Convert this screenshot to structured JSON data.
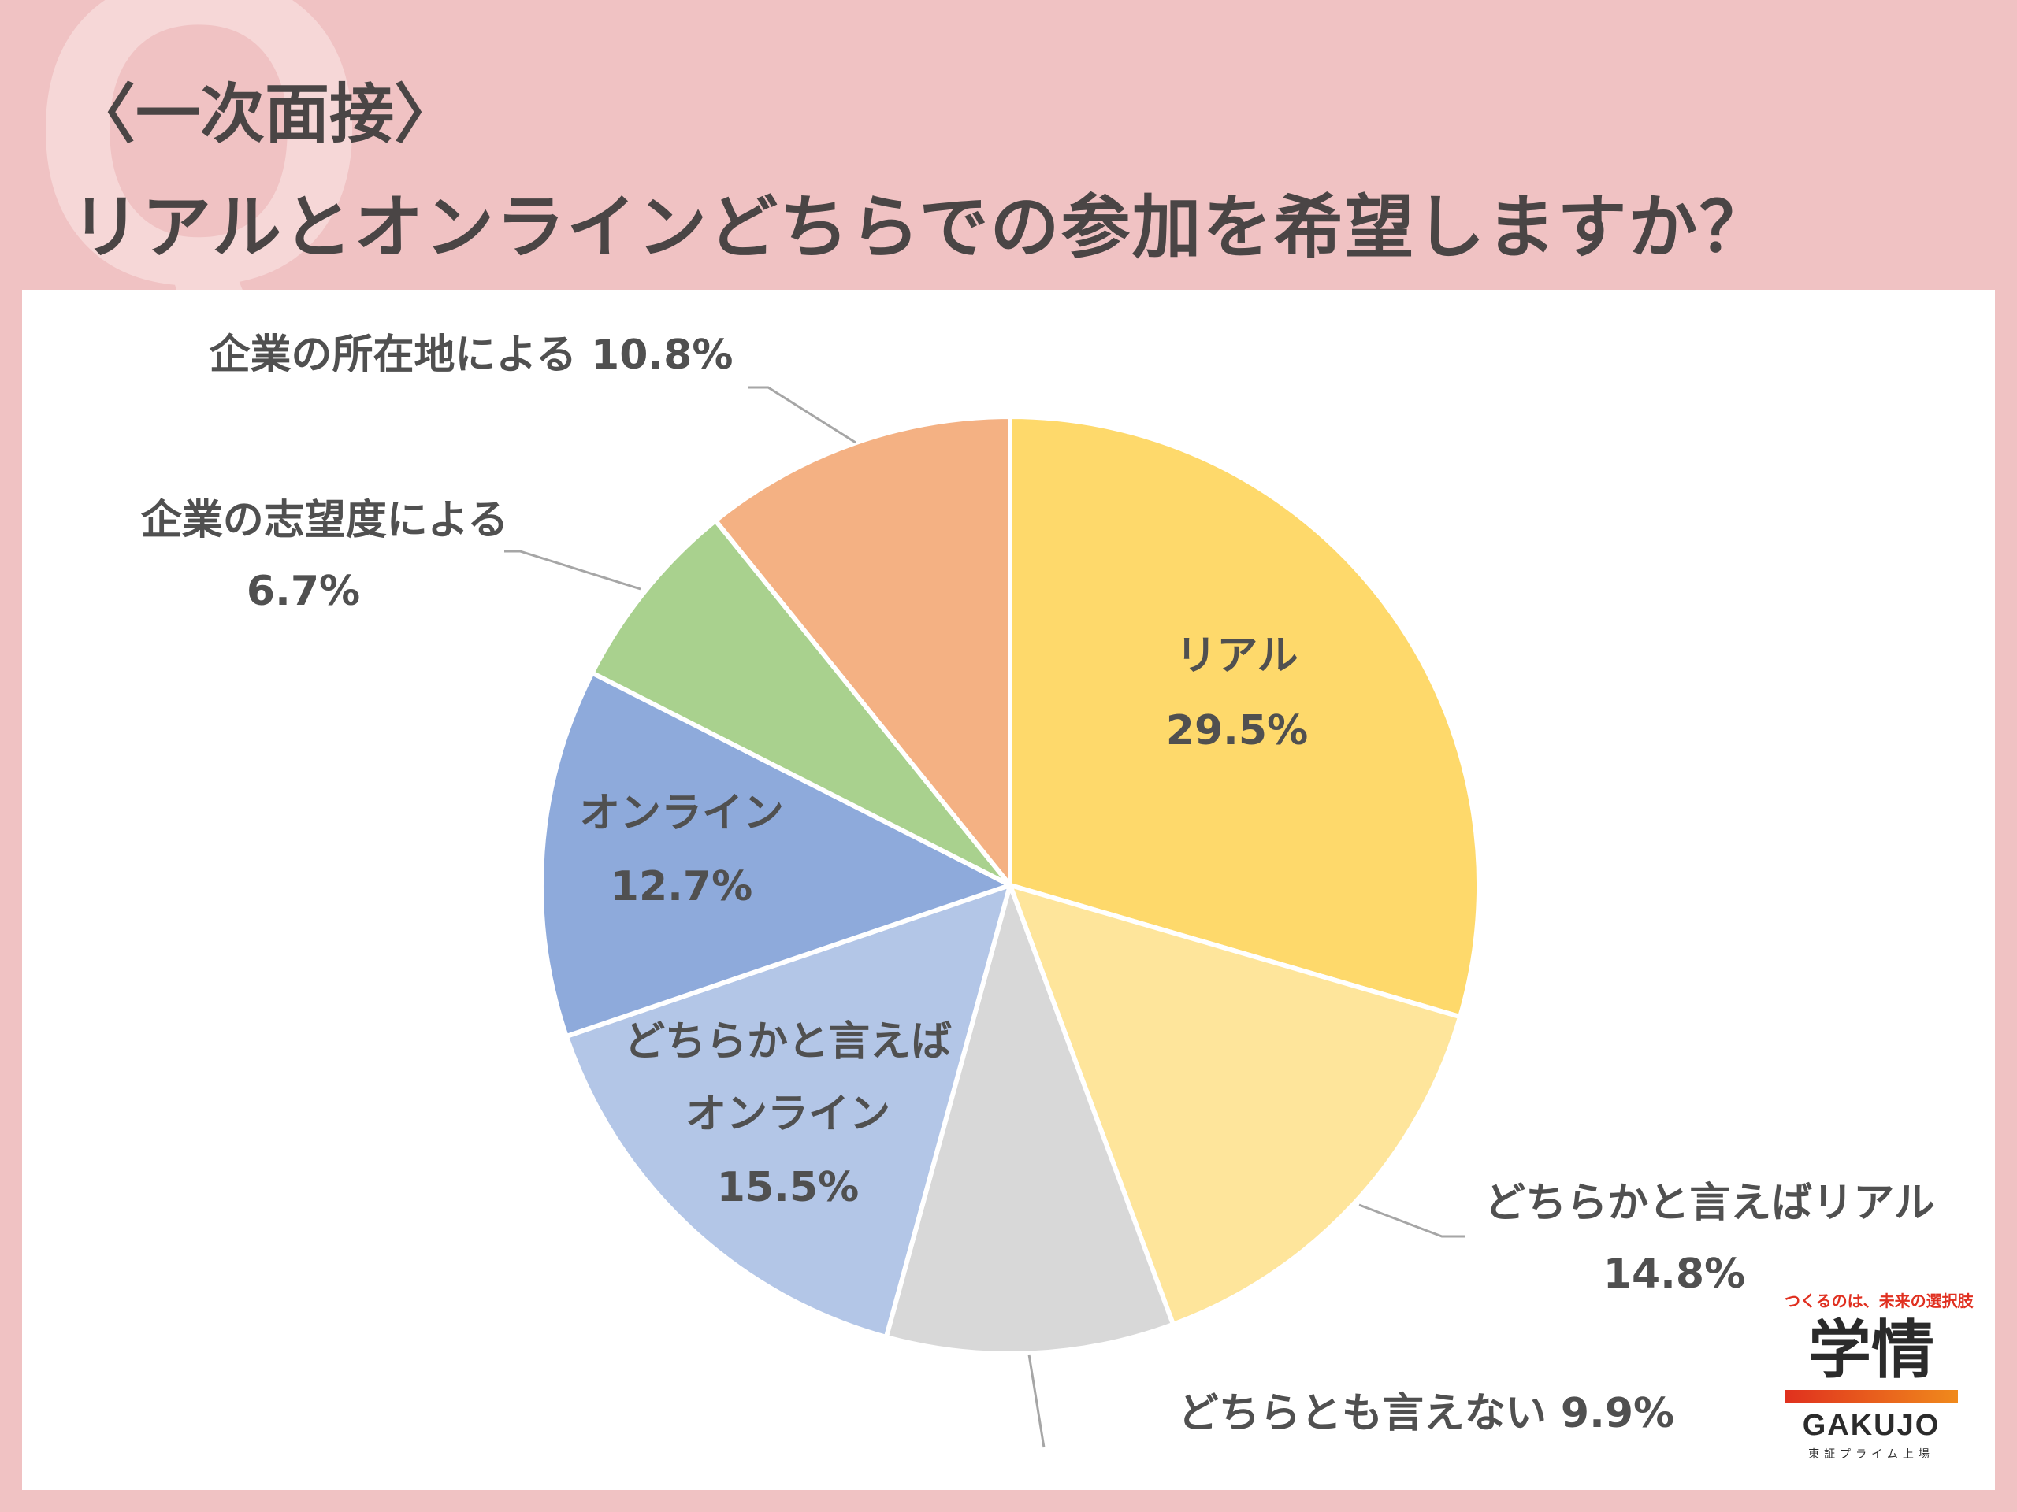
{
  "title": {
    "line1": "〈一次面接〉",
    "line2": "リアルとオンラインどちらでの参加を希望しますか？"
  },
  "decoration": {
    "letter": "Q"
  },
  "chart_data": {
    "type": "pie",
    "start_angle_deg": 0,
    "direction": "clockwise",
    "slices": [
      {
        "label": "リアル",
        "value": 29.5,
        "value_text": "29.5%",
        "color": "#fed96b"
      },
      {
        "label": "どちらかと言えばリアル",
        "value": 14.8,
        "value_text": "14.8%",
        "color": "#fee59b"
      },
      {
        "label": "どちらとも言えない",
        "value": 9.9,
        "value_text": "9.9%",
        "color": "#d8d8d8"
      },
      {
        "label": "どちらかと言えば",
        "label2": "オンライン",
        "value": 15.5,
        "value_text": "15.5%",
        "color": "#b3c6e7"
      },
      {
        "label": "オンライン",
        "value": 12.7,
        "value_text": "12.7%",
        "color": "#8eaadb"
      },
      {
        "label": "企業の志望度による",
        "value": 6.7,
        "value_text": "6.7%",
        "color": "#a9d18e"
      },
      {
        "label": "企業の所在地による",
        "value": 10.8,
        "value_text": "10.8%",
        "color": "#f4b183"
      }
    ]
  },
  "logo": {
    "tagline": "つくるのは、未来の選択肢",
    "kanji": "学情",
    "name": "GAKUJO",
    "sub": "東証プライム上場"
  }
}
